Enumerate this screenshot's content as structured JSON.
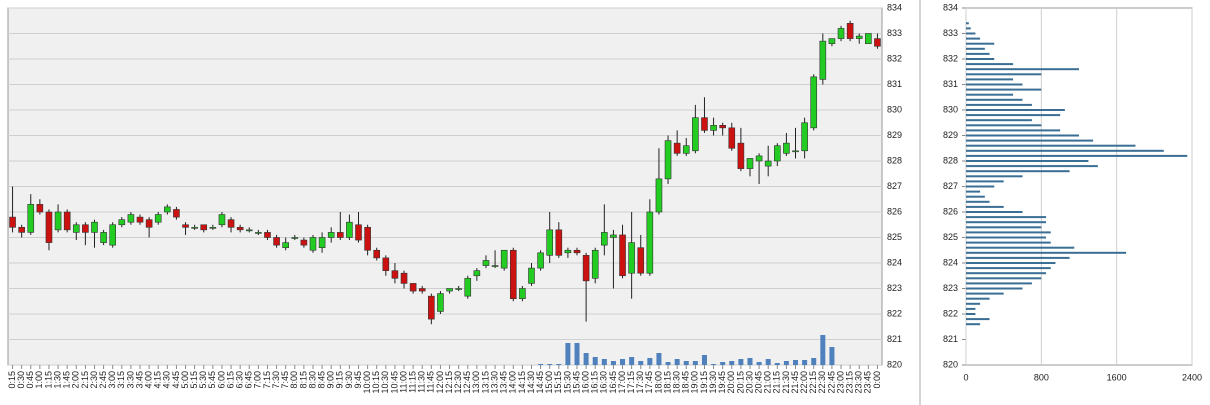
{
  "chart_data": [
    {
      "type": "candlestick",
      "categories": [
        "0:15",
        "0:30",
        "0:45",
        "1:00",
        "1:15",
        "1:30",
        "1:45",
        "2:00",
        "2:15",
        "2:30",
        "2:45",
        "3:00",
        "3:15",
        "3:30",
        "3:45",
        "4:00",
        "4:15",
        "4:30",
        "4:45",
        "5:00",
        "5:15",
        "5:30",
        "5:45",
        "6:00",
        "6:15",
        "6:30",
        "6:45",
        "7:00",
        "7:15",
        "7:30",
        "7:45",
        "8:00",
        "8:15",
        "8:30",
        "8:45",
        "9:00",
        "9:15",
        "9:30",
        "9:45",
        "10:00",
        "10:15",
        "10:30",
        "10:45",
        "11:00",
        "11:15",
        "11:30",
        "11:45",
        "12:00",
        "12:15",
        "12:30",
        "12:45",
        "13:00",
        "13:15",
        "13:30",
        "13:45",
        "14:00",
        "14:15",
        "14:30",
        "14:45",
        "15:00",
        "15:15",
        "15:30",
        "15:45",
        "16:00",
        "16:15",
        "16:30",
        "16:45",
        "17:00",
        "17:15",
        "17:30",
        "17:45",
        "18:00",
        "18:15",
        "18:30",
        "18:45",
        "19:00",
        "19:15",
        "19:30",
        "19:45",
        "20:00",
        "20:15",
        "20:30",
        "20:45",
        "21:00",
        "21:15",
        "21:30",
        "21:45",
        "22:00",
        "22:15",
        "22:30",
        "22:45",
        "23:00",
        "23:15",
        "23:30",
        "23:45",
        "0:00"
      ],
      "open": [
        825.8,
        825.4,
        825.2,
        826.3,
        826.0,
        825.3,
        826.0,
        825.2,
        825.5,
        825.2,
        824.8,
        824.7,
        825.5,
        825.6,
        825.8,
        825.7,
        825.6,
        826.0,
        826.1,
        825.5,
        825.4,
        825.5,
        825.4,
        825.5,
        825.7,
        825.4,
        825.3,
        825.2,
        825.2,
        825.0,
        824.6,
        825.0,
        824.9,
        824.5,
        824.6,
        825.0,
        825.2,
        825.0,
        825.5,
        825.4,
        824.5,
        824.2,
        823.7,
        823.6,
        823.2,
        823.0,
        822.7,
        822.1,
        822.9,
        823.0,
        822.7,
        823.5,
        823.9,
        823.9,
        823.8,
        824.5,
        822.6,
        823.2,
        823.8,
        824.3,
        825.3,
        824.4,
        824.5,
        824.3,
        823.4,
        824.7,
        825.0,
        825.1,
        823.6,
        824.6,
        823.6,
        826.0,
        827.3,
        828.7,
        828.3,
        828.4,
        829.7,
        829.2,
        829.4,
        829.3,
        828.7,
        827.7,
        828.0,
        827.8,
        828.0,
        828.3,
        828.4,
        828.4,
        829.3,
        831.2,
        832.6,
        832.8,
        833.4,
        832.8,
        832.6,
        832.8
      ],
      "high": [
        827.0,
        825.5,
        826.7,
        826.5,
        826.1,
        826.3,
        826.1,
        825.6,
        825.6,
        825.7,
        825.3,
        825.6,
        825.8,
        826.0,
        825.9,
        825.8,
        826.0,
        826.3,
        826.2,
        825.6,
        825.5,
        825.5,
        825.5,
        826.0,
        825.8,
        825.5,
        825.4,
        825.3,
        825.3,
        825.1,
        825.0,
        825.1,
        825.0,
        825.1,
        825.2,
        825.4,
        826.0,
        825.9,
        826.0,
        825.5,
        824.6,
        824.3,
        824.0,
        823.7,
        823.2,
        823.1,
        822.8,
        822.9,
        823.0,
        823.1,
        823.5,
        823.8,
        824.3,
        824.5,
        824.5,
        824.6,
        823.1,
        824.0,
        824.5,
        826.0,
        825.6,
        824.6,
        824.6,
        824.4,
        824.6,
        826.3,
        825.3,
        825.5,
        826.0,
        825.1,
        826.5,
        828.5,
        829.0,
        829.2,
        828.9,
        830.2,
        830.5,
        829.7,
        829.5,
        829.5,
        829.3,
        828.1,
        828.3,
        828.6,
        828.7,
        829.1,
        829.3,
        829.7,
        831.4,
        833.0,
        832.8,
        833.3,
        833.5,
        833.0,
        833.0,
        833.0
      ],
      "low": [
        825.2,
        825.0,
        825.1,
        825.9,
        824.5,
        825.2,
        825.2,
        824.9,
        824.7,
        824.6,
        824.7,
        824.6,
        825.4,
        825.5,
        825.5,
        825.0,
        825.5,
        825.9,
        825.7,
        825.1,
        825.3,
        825.2,
        825.3,
        825.4,
        825.2,
        825.2,
        825.2,
        825.1,
        824.9,
        824.6,
        824.5,
        824.9,
        824.6,
        824.4,
        824.4,
        824.8,
        824.9,
        824.9,
        824.8,
        824.3,
        824.1,
        823.5,
        823.2,
        823.0,
        822.8,
        822.8,
        821.6,
        822.0,
        822.8,
        822.9,
        822.6,
        823.3,
        823.8,
        823.8,
        823.7,
        822.5,
        822.5,
        823.1,
        823.7,
        824.0,
        824.2,
        824.2,
        824.3,
        821.7,
        823.2,
        824.3,
        823.0,
        823.4,
        822.6,
        823.5,
        823.5,
        825.9,
        827.1,
        828.2,
        828.2,
        828.3,
        829.1,
        829.0,
        829.0,
        828.4,
        827.6,
        827.4,
        827.1,
        827.4,
        827.8,
        828.2,
        828.1,
        828.1,
        829.2,
        831.0,
        832.5,
        832.7,
        832.7,
        832.6,
        832.6,
        832.4
      ],
      "close": [
        825.4,
        825.2,
        826.3,
        826.0,
        824.8,
        826.0,
        825.3,
        825.5,
        825.2,
        825.6,
        825.2,
        825.5,
        825.7,
        825.9,
        825.6,
        825.4,
        825.9,
        826.2,
        825.8,
        825.4,
        825.4,
        825.3,
        825.4,
        825.9,
        825.4,
        825.3,
        825.3,
        825.2,
        825.0,
        824.7,
        824.8,
        825.0,
        824.7,
        825.0,
        825.0,
        825.2,
        825.0,
        825.6,
        824.9,
        824.5,
        824.2,
        823.7,
        823.4,
        823.2,
        822.9,
        822.9,
        821.8,
        822.8,
        823.0,
        823.0,
        823.4,
        823.7,
        824.1,
        823.9,
        824.5,
        822.6,
        823.0,
        823.8,
        824.4,
        825.3,
        824.3,
        824.5,
        824.4,
        823.3,
        824.5,
        825.2,
        825.1,
        823.5,
        824.8,
        823.6,
        826.0,
        827.3,
        828.8,
        828.3,
        828.6,
        829.7,
        829.2,
        829.4,
        829.3,
        828.5,
        827.7,
        828.1,
        828.2,
        828.0,
        828.6,
        828.7,
        828.4,
        829.5,
        831.3,
        832.7,
        832.8,
        833.2,
        832.8,
        832.9,
        833.0,
        832.5
      ],
      "volume": [
        0,
        0,
        0,
        0,
        0,
        0,
        0,
        0,
        0,
        0,
        0,
        0,
        0,
        0,
        0,
        0,
        0,
        0,
        0,
        0,
        0,
        0,
        0,
        0,
        0,
        0,
        0,
        0,
        0,
        0,
        0,
        0,
        0,
        0,
        0,
        0,
        0,
        0,
        0,
        0,
        0,
        0,
        0,
        0,
        0,
        0,
        0,
        0,
        0,
        0,
        0,
        0,
        0,
        0,
        0,
        0,
        0,
        0,
        1,
        1,
        1,
        22,
        22,
        12,
        8,
        6,
        4,
        6,
        8,
        4,
        7,
        12,
        3,
        6,
        4,
        4,
        10,
        1,
        3,
        4,
        6,
        7,
        3,
        6,
        2,
        4,
        5,
        5,
        7,
        30,
        18,
        0,
        0,
        0,
        0,
        0
      ],
      "up_color": "#22cc22",
      "down_color": "#cc1111",
      "volume_color": "#4f81bd",
      "ylim": [
        820,
        834
      ],
      "yticks": [
        820,
        821,
        822,
        823,
        824,
        825,
        826,
        827,
        828,
        829,
        830,
        831,
        832,
        833,
        834
      ],
      "grid": true
    },
    {
      "type": "bar",
      "orientation": "horizontal",
      "y": [
        821.6,
        821.8,
        822.0,
        822.2,
        822.4,
        822.6,
        822.8,
        823.0,
        823.2,
        823.4,
        823.6,
        823.8,
        824.0,
        824.2,
        824.4,
        824.6,
        824.8,
        825.0,
        825.2,
        825.4,
        825.6,
        825.8,
        826.0,
        826.2,
        826.4,
        826.6,
        826.8,
        827.0,
        827.2,
        827.4,
        827.6,
        827.8,
        828.0,
        828.2,
        828.4,
        828.6,
        828.8,
        829.0,
        829.2,
        829.4,
        829.6,
        829.8,
        830.0,
        830.2,
        830.4,
        830.6,
        830.8,
        831.0,
        831.2,
        831.4,
        831.6,
        831.8,
        832.0,
        832.2,
        832.4,
        832.6,
        832.8,
        833.0,
        833.2,
        833.4
      ],
      "values": [
        150,
        250,
        100,
        100,
        150,
        250,
        400,
        600,
        700,
        800,
        850,
        900,
        950,
        1100,
        1700,
        1150,
        900,
        850,
        900,
        800,
        850,
        850,
        600,
        400,
        250,
        200,
        150,
        300,
        400,
        600,
        1100,
        1400,
        1300,
        2350,
        2100,
        1800,
        1350,
        1200,
        1000,
        800,
        700,
        1000,
        1050,
        700,
        600,
        500,
        800,
        600,
        500,
        800,
        1200,
        500,
        300,
        250,
        200,
        300,
        150,
        100,
        50,
        30
      ],
      "color": "#3a6e94",
      "xlim": [
        0,
        2400
      ],
      "xticks": [
        0,
        800,
        1600,
        2400
      ],
      "ylim": [
        820,
        834
      ],
      "yticks": [
        820,
        821,
        822,
        823,
        824,
        825,
        826,
        827,
        828,
        829,
        830,
        831,
        832,
        833,
        834
      ],
      "grid": true
    }
  ]
}
